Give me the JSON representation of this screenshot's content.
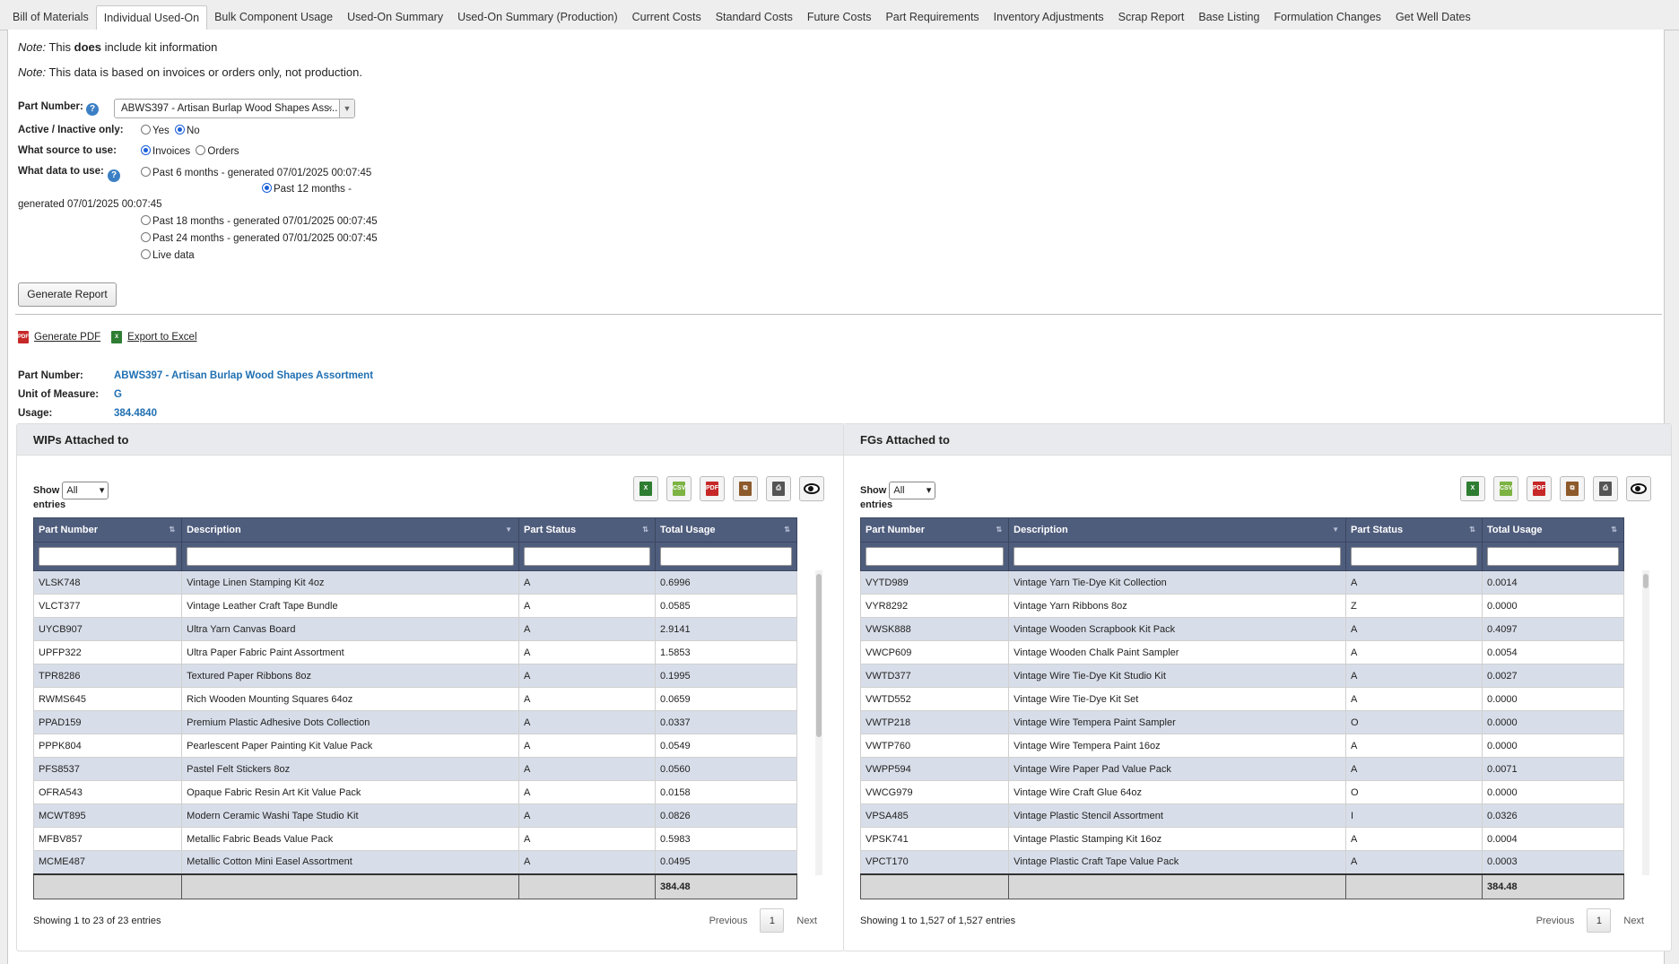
{
  "tabs": [
    {
      "label": "Bill of Materials"
    },
    {
      "label": "Individual Used-On"
    },
    {
      "label": "Bulk Component Usage"
    },
    {
      "label": "Used-On Summary"
    },
    {
      "label": "Used-On Summary (Production)"
    },
    {
      "label": "Current Costs"
    },
    {
      "label": "Standard Costs"
    },
    {
      "label": "Future Costs"
    },
    {
      "label": "Part Requirements"
    },
    {
      "label": "Inventory Adjustments"
    },
    {
      "label": "Scrap Report"
    },
    {
      "label": "Base Listing"
    },
    {
      "label": "Formulation Changes"
    },
    {
      "label": "Get Well Dates"
    }
  ],
  "active_tab": "Individual Used-On",
  "notes": {
    "note_label": "Note:",
    "note1_a": "This",
    "note1_b": "does",
    "note1_c": "include kit information",
    "note2": "This data is based on invoices or orders only, not production."
  },
  "form": {
    "part_number_label": "Part Number:",
    "part_number_value": "ABWS397 - Artisan Burlap Wood Shapes Ass...",
    "active_label": "Active / Inactive only:",
    "active_yes": "Yes",
    "active_no": "No",
    "source_label": "What source to use:",
    "source_invoices": "Invoices",
    "source_orders": "Orders",
    "data_label": "What data to use:",
    "opt_6": "Past 6 months - generated 07/01/2025 00:07:45",
    "opt_12a": "Past 12 months -",
    "opt_12b": "generated 07/01/2025 00:07:45",
    "opt_18": "Past 18 months - generated 07/01/2025 00:07:45",
    "opt_24": "Past 24 months - generated 07/01/2025 00:07:45",
    "opt_live": "Live data",
    "generate_label": "Generate Report"
  },
  "actions": {
    "pdf_label": "Generate PDF",
    "excel_label": "Export to Excel"
  },
  "summary": {
    "part_label": "Part Number:",
    "part_value": "ABWS397 - Artisan Burlap Wood Shapes Assortment",
    "uom_label": "Unit of Measure:",
    "uom_value": "G",
    "usage_label": "Usage:",
    "usage_value": "384.4840"
  },
  "wips": {
    "title": "WIPs Attached to",
    "show_label": "Show",
    "show_value": "All",
    "entries_label": "entries",
    "columns": [
      "Part Number",
      "Description",
      "Part Status",
      "Total Usage"
    ],
    "rows": [
      [
        "VLSK748",
        "Vintage Linen Stamping Kit 4oz",
        "A",
        "0.6996"
      ],
      [
        "VLCT377",
        "Vintage Leather Craft Tape Bundle",
        "A",
        "0.0585"
      ],
      [
        "UYCB907",
        "Ultra Yarn Canvas Board",
        "A",
        "2.9141"
      ],
      [
        "UPFP322",
        "Ultra Paper Fabric Paint Assortment",
        "A",
        "1.5853"
      ],
      [
        "TPR8286",
        "Textured Paper Ribbons 8oz",
        "A",
        "0.1995"
      ],
      [
        "RWMS645",
        "Rich Wooden Mounting Squares 64oz",
        "A",
        "0.0659"
      ],
      [
        "PPAD159",
        "Premium Plastic Adhesive Dots Collection",
        "A",
        "0.0337"
      ],
      [
        "PPPK804",
        "Pearlescent Paper Painting Kit Value Pack",
        "A",
        "0.0549"
      ],
      [
        "PFS8537",
        "Pastel Felt Stickers 8oz",
        "A",
        "0.0560"
      ],
      [
        "OFRA543",
        "Opaque Fabric Resin Art Kit Value Pack",
        "A",
        "0.0158"
      ],
      [
        "MCWT895",
        "Modern Ceramic Washi Tape Studio Kit",
        "A",
        "0.0826"
      ],
      [
        "MFBV857",
        "Metallic Fabric Beads Value Pack",
        "A",
        "0.5983"
      ],
      [
        "MCME487",
        "Metallic Cotton Mini Easel Assortment",
        "A",
        "0.0495"
      ]
    ],
    "total": "384.48",
    "info": "Showing 1 to 23 of 23 entries",
    "prev": "Previous",
    "page": "1",
    "next": "Next"
  },
  "fgs": {
    "title": "FGs Attached to",
    "show_label": "Show",
    "show_value": "All",
    "entries_label": "entries",
    "columns": [
      "Part Number",
      "Description",
      "Part Status",
      "Total Usage"
    ],
    "rows": [
      [
        "VYTD989",
        "Vintage Yarn Tie-Dye Kit Collection",
        "A",
        "0.0014"
      ],
      [
        "VYR8292",
        "Vintage Yarn Ribbons 8oz",
        "Z",
        "0.0000"
      ],
      [
        "VWSK888",
        "Vintage Wooden Scrapbook Kit Pack",
        "A",
        "0.4097"
      ],
      [
        "VWCP609",
        "Vintage Wooden Chalk Paint Sampler",
        "A",
        "0.0054"
      ],
      [
        "VWTD377",
        "Vintage Wire Tie-Dye Kit Studio Kit",
        "A",
        "0.0027"
      ],
      [
        "VWTD552",
        "Vintage Wire Tie-Dye Kit Set",
        "A",
        "0.0000"
      ],
      [
        "VWTP218",
        "Vintage Wire Tempera Paint Sampler",
        "O",
        "0.0000"
      ],
      [
        "VWTP760",
        "Vintage Wire Tempera Paint 16oz",
        "A",
        "0.0000"
      ],
      [
        "VWPP594",
        "Vintage Wire Paper Pad Value Pack",
        "A",
        "0.0071"
      ],
      [
        "VWCG979",
        "Vintage Wire Craft Glue 64oz",
        "O",
        "0.0000"
      ],
      [
        "VPSA485",
        "Vintage Plastic Stencil Assortment",
        "I",
        "0.0326"
      ],
      [
        "VPSK741",
        "Vintage Plastic Stamping Kit 16oz",
        "A",
        "0.0004"
      ],
      [
        "VPCT170",
        "Vintage Plastic Craft Tape Value Pack",
        "A",
        "0.0003"
      ]
    ],
    "total": "384.48",
    "info": "Showing 1 to 1,527 of 1,527 entries",
    "prev": "Previous",
    "page": "1",
    "next": "Next"
  },
  "toolbar_icons": [
    "excel-icon",
    "csv-icon",
    "pdf-icon",
    "copy-icon",
    "print-icon",
    "column-visibility-icon"
  ],
  "colors": {
    "header": "#4f5d7d",
    "odd_row": "#d8dee9",
    "link": "#1f6fb2"
  }
}
